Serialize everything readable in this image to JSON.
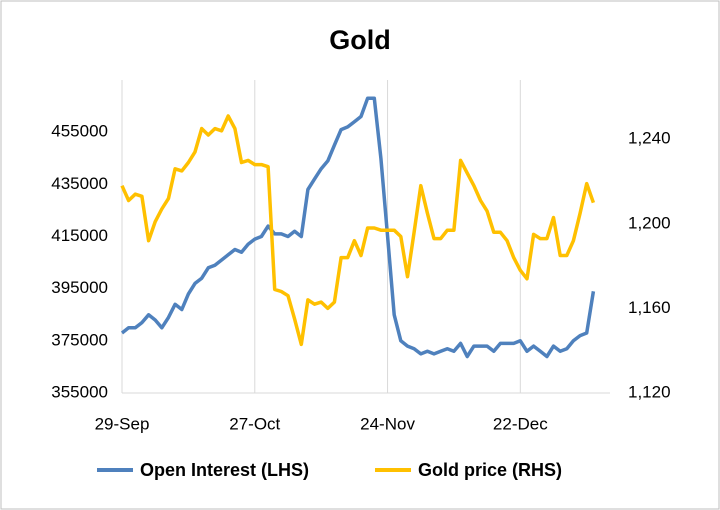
{
  "chart_data": {
    "type": "line",
    "title": "Gold",
    "x": [
      "29-Sep",
      "30-Sep",
      "1-Oct",
      "2-Oct",
      "3-Oct",
      "6-Oct",
      "7-Oct",
      "8-Oct",
      "9-Oct",
      "10-Oct",
      "13-Oct",
      "14-Oct",
      "15-Oct",
      "16-Oct",
      "17-Oct",
      "20-Oct",
      "21-Oct",
      "22-Oct",
      "23-Oct",
      "24-Oct",
      "27-Oct",
      "28-Oct",
      "29-Oct",
      "30-Oct",
      "31-Oct",
      "3-Nov",
      "4-Nov",
      "5-Nov",
      "6-Nov",
      "7-Nov",
      "10-Nov",
      "11-Nov",
      "12-Nov",
      "13-Nov",
      "14-Nov",
      "17-Nov",
      "18-Nov",
      "19-Nov",
      "20-Nov",
      "21-Nov",
      "24-Nov",
      "25-Nov",
      "26-Nov",
      "27-Nov",
      "28-Nov",
      "1-Dec",
      "2-Dec",
      "3-Dec",
      "4-Dec",
      "5-Dec",
      "8-Dec",
      "9-Dec",
      "10-Dec",
      "11-Dec",
      "12-Dec",
      "15-Dec",
      "16-Dec",
      "17-Dec",
      "18-Dec",
      "19-Dec",
      "22-Dec",
      "23-Dec",
      "24-Dec",
      "25-Dec",
      "26-Dec",
      "29-Dec",
      "30-Dec",
      "31-Dec",
      "1-Jan",
      "2-Jan",
      "5-Jan",
      "6-Jan"
    ],
    "series": [
      {
        "name": "Open Interest (LHS)",
        "color": "#4f81bd",
        "axis": "y",
        "values": [
          378000,
          380000,
          380000,
          382000,
          385000,
          383000,
          380000,
          384000,
          389000,
          387000,
          393000,
          397000,
          399000,
          403000,
          404000,
          406000,
          408000,
          410000,
          409000,
          412000,
          414000,
          415000,
          419000,
          416000,
          416000,
          415000,
          417000,
          415000,
          433000,
          437000,
          441000,
          444000,
          450000,
          456000,
          457000,
          459000,
          461000,
          468000,
          468000,
          445000,
          415000,
          385000,
          375000,
          373000,
          372000,
          370000,
          371000,
          370000,
          371000,
          372000,
          371000,
          374000,
          369000,
          373000,
          373000,
          373000,
          371000,
          374000,
          374000,
          374000,
          375000,
          371000,
          373000,
          371000,
          369000,
          373000,
          371000,
          372000,
          375000,
          377000,
          378000,
          394000
        ]
      },
      {
        "name": "Gold price (RHS)",
        "color": "#ffc000",
        "axis": "y2",
        "values": [
          1218,
          1211,
          1214,
          1213,
          1192,
          1201,
          1207,
          1212,
          1226,
          1225,
          1229,
          1234,
          1245,
          1242,
          1245,
          1244,
          1251,
          1245,
          1229,
          1230,
          1228,
          1228,
          1227,
          1169,
          1168,
          1166,
          1155,
          1143,
          1164,
          1162,
          1163,
          1160,
          1163,
          1184,
          1184,
          1192,
          1185,
          1198,
          1198,
          1197,
          1197,
          1197,
          1194,
          1175,
          1196,
          1218,
          1205,
          1193,
          1193,
          1197,
          1197,
          1230,
          1224,
          1218,
          1211,
          1206,
          1196,
          1196,
          1192,
          1184,
          1178,
          1174,
          1195,
          1193,
          1193,
          1203,
          1185,
          1185,
          1192,
          1205,
          1219,
          1210
        ]
      }
    ],
    "xticks": [
      "29-Sep",
      "27-Oct",
      "24-Nov",
      "22-Dec"
    ],
    "ylim": [
      355000,
      475000
    ],
    "yticks": [
      355000,
      375000,
      395000,
      415000,
      435000,
      455000
    ],
    "y2lim": [
      1120,
      1268
    ],
    "y2ticks": [
      {
        "value": 1120,
        "label": "1,120"
      },
      {
        "value": 1160,
        "label": "1,160"
      },
      {
        "value": 1200,
        "label": "1,200"
      },
      {
        "value": 1240,
        "label": "1,240"
      }
    ],
    "grid": "x",
    "legend": "bottom"
  }
}
